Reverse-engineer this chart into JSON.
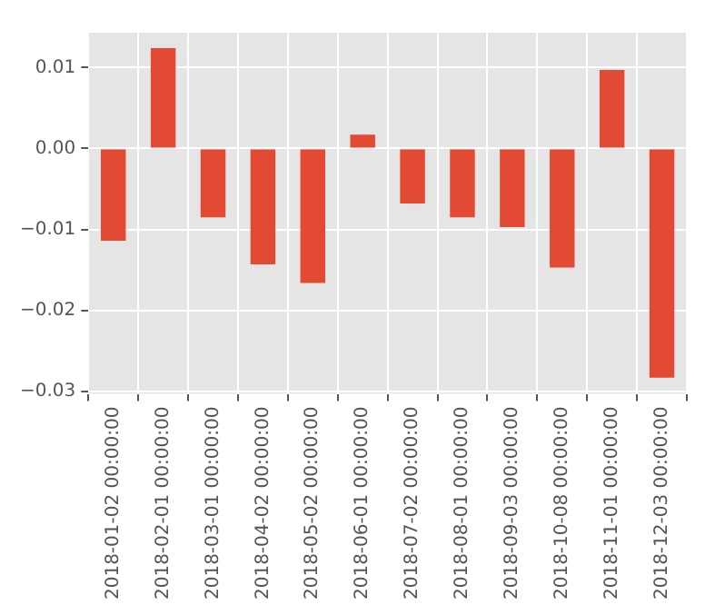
{
  "chart_data": {
    "type": "bar",
    "categories": [
      "2018-01-02 00:00:00",
      "2018-02-01 00:00:00",
      "2018-03-01 00:00:00",
      "2018-04-02 00:00:00",
      "2018-05-02 00:00:00",
      "2018-06-01 00:00:00",
      "2018-07-02 00:00:00",
      "2018-08-01 00:00:00",
      "2018-09-03 00:00:00",
      "2018-10-08 00:00:00",
      "2018-11-01 00:00:00",
      "2018-12-03 00:00:00"
    ],
    "values": [
      -0.0114,
      0.0124,
      -0.0085,
      -0.0143,
      -0.0166,
      0.0017,
      -0.0068,
      -0.0085,
      -0.0097,
      -0.0147,
      0.0097,
      -0.0283
    ],
    "color": "#e24a33",
    "ylim": [
      -0.0303,
      0.0143
    ],
    "yticks": [
      {
        "value": -0.03,
        "label": "−0.03"
      },
      {
        "value": -0.02,
        "label": "−0.02"
      },
      {
        "value": -0.01,
        "label": "−0.01"
      },
      {
        "value": 0,
        "label": "0.00"
      },
      {
        "value": 0.01,
        "label": "0.01"
      }
    ],
    "grid": true,
    "legend": false
  }
}
